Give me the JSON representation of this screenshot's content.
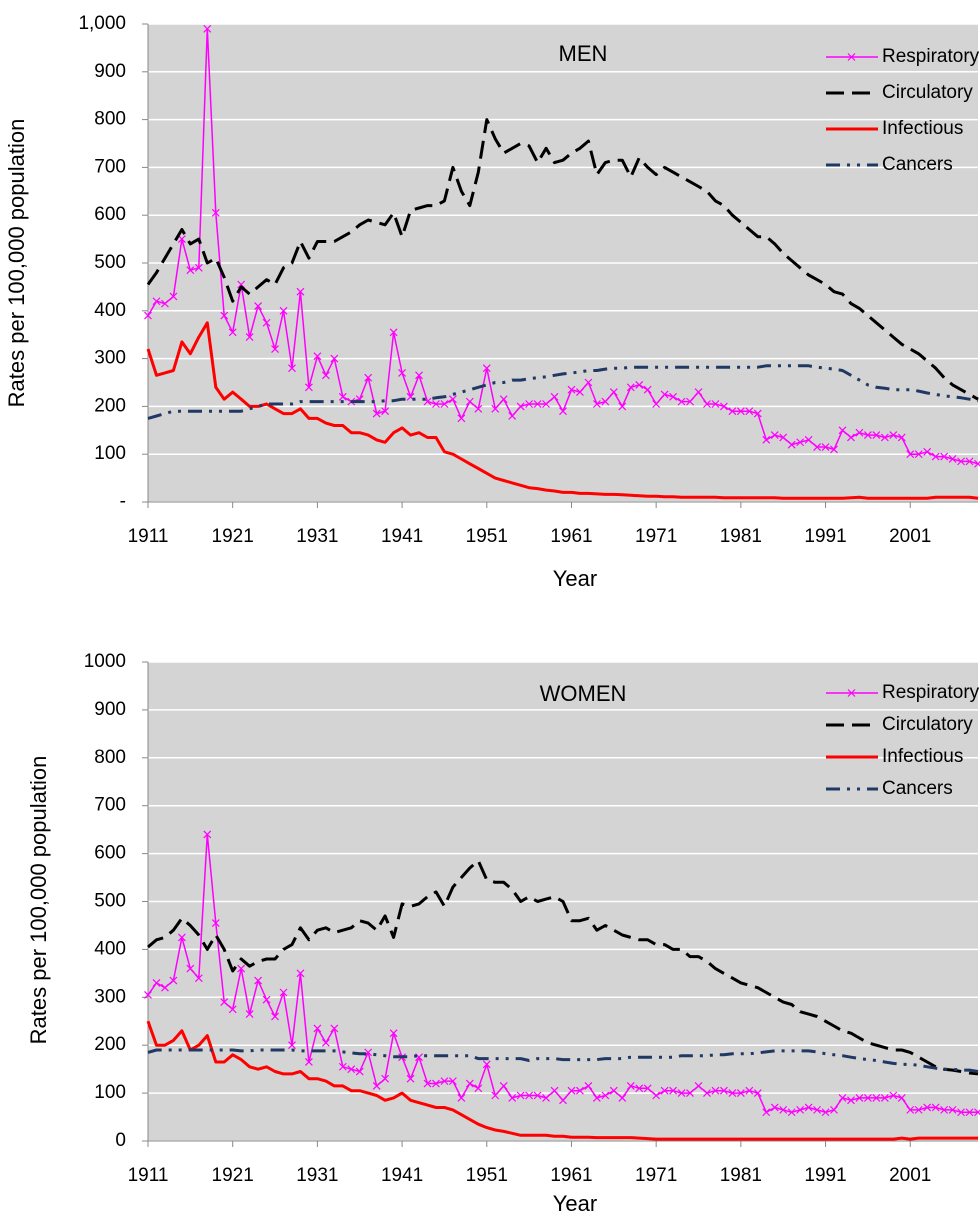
{
  "chart_data": [
    {
      "type": "line",
      "title": "MEN",
      "x_label": "Year",
      "y_label": "Rates per 100,000 population",
      "x": [
        1911,
        1912,
        1913,
        1914,
        1915,
        1916,
        1917,
        1918,
        1919,
        1920,
        1921,
        1922,
        1923,
        1924,
        1925,
        1926,
        1927,
        1928,
        1929,
        1930,
        1931,
        1932,
        1933,
        1934,
        1935,
        1936,
        1937,
        1938,
        1939,
        1940,
        1941,
        1942,
        1943,
        1944,
        1945,
        1946,
        1947,
        1948,
        1949,
        1950,
        1951,
        1952,
        1953,
        1954,
        1955,
        1956,
        1957,
        1958,
        1959,
        1960,
        1961,
        1962,
        1963,
        1964,
        1965,
        1966,
        1967,
        1968,
        1969,
        1970,
        1971,
        1972,
        1973,
        1974,
        1975,
        1976,
        1977,
        1978,
        1979,
        1980,
        1981,
        1982,
        1983,
        1984,
        1985,
        1986,
        1987,
        1988,
        1989,
        1990,
        1991,
        1992,
        1993,
        1994,
        1995,
        1996,
        1997,
        1998,
        1999,
        2000,
        2001,
        2002,
        2003,
        2004,
        2005,
        2006,
        2007,
        2008,
        2009
      ],
      "xlim": [
        1911,
        2009
      ],
      "xticks": [
        1911,
        1921,
        1931,
        1941,
        1951,
        1961,
        1971,
        1981,
        1991,
        2001
      ],
      "ylim": [
        0,
        1000
      ],
      "yticks": [
        {
          "value": 0,
          "label": "-"
        },
        100,
        200,
        300,
        400,
        500,
        600,
        700,
        800,
        900,
        {
          "value": 1000,
          "label": "1,000"
        }
      ],
      "grid": true,
      "legend": "upper right",
      "series": [
        {
          "name": "Respiratory",
          "color": "#ff00ff",
          "line_style": "solid",
          "marker": "x",
          "values": [
            390,
            420,
            415,
            430,
            550,
            485,
            490,
            990,
            605,
            390,
            355,
            455,
            345,
            410,
            375,
            320,
            400,
            280,
            440,
            240,
            305,
            265,
            300,
            220,
            210,
            215,
            260,
            185,
            190,
            355,
            270,
            220,
            265,
            210,
            205,
            205,
            215,
            175,
            210,
            195,
            280,
            195,
            215,
            180,
            200,
            205,
            205,
            205,
            220,
            190,
            235,
            230,
            250,
            205,
            210,
            230,
            200,
            240,
            245,
            235,
            205,
            225,
            220,
            210,
            210,
            230,
            205,
            205,
            200,
            190,
            190,
            190,
            185,
            130,
            140,
            135,
            120,
            125,
            130,
            115,
            115,
            110,
            150,
            135,
            145,
            140,
            140,
            135,
            140,
            135,
            100,
            100,
            105,
            95,
            95,
            90,
            85,
            85,
            80
          ]
        },
        {
          "name": "Circulatory",
          "color": "#000000",
          "line_style": "dashed",
          "values": [
            455,
            480,
            510,
            540,
            570,
            540,
            550,
            500,
            510,
            470,
            420,
            450,
            435,
            450,
            465,
            455,
            490,
            500,
            545,
            510,
            545,
            545,
            545,
            555,
            565,
            580,
            590,
            585,
            580,
            605,
            555,
            610,
            615,
            620,
            620,
            630,
            700,
            650,
            620,
            690,
            800,
            760,
            730,
            740,
            750,
            745,
            710,
            740,
            710,
            715,
            730,
            740,
            755,
            685,
            710,
            715,
            715,
            680,
            720,
            700,
            685,
            700,
            690,
            680,
            670,
            660,
            650,
            630,
            620,
            600,
            585,
            570,
            555,
            555,
            540,
            520,
            505,
            490,
            475,
            465,
            455,
            440,
            435,
            415,
            405,
            390,
            375,
            360,
            345,
            330,
            320,
            310,
            295,
            280,
            260,
            245,
            235,
            225,
            215
          ]
        },
        {
          "name": "Infectious",
          "color": "#ff0000",
          "line_style": "solid",
          "values": [
            320,
            265,
            270,
            275,
            335,
            310,
            345,
            375,
            240,
            215,
            230,
            215,
            200,
            200,
            205,
            195,
            185,
            185,
            195,
            175,
            175,
            165,
            160,
            160,
            145,
            145,
            140,
            130,
            125,
            145,
            155,
            140,
            145,
            135,
            135,
            105,
            100,
            90,
            80,
            70,
            60,
            50,
            45,
            40,
            35,
            30,
            28,
            25,
            23,
            20,
            20,
            18,
            18,
            17,
            16,
            16,
            15,
            14,
            13,
            12,
            12,
            11,
            11,
            10,
            10,
            10,
            10,
            10,
            9,
            9,
            9,
            9,
            9,
            9,
            9,
            8,
            8,
            8,
            8,
            8,
            8,
            8,
            8,
            9,
            10,
            8,
            8,
            8,
            8,
            8,
            8,
            8,
            8,
            10,
            10,
            10,
            10,
            10,
            8
          ]
        },
        {
          "name": "Cancers",
          "color": "#1f3864",
          "line_style": "dash-dot-dot",
          "values": [
            175,
            180,
            185,
            190,
            190,
            190,
            190,
            190,
            190,
            190,
            190,
            190,
            195,
            200,
            205,
            205,
            205,
            205,
            210,
            210,
            210,
            210,
            210,
            210,
            210,
            210,
            210,
            210,
            212,
            212,
            215,
            215,
            215,
            215,
            218,
            220,
            225,
            230,
            235,
            240,
            245,
            250,
            250,
            255,
            255,
            258,
            260,
            262,
            265,
            268,
            270,
            272,
            275,
            275,
            278,
            280,
            280,
            282,
            282,
            282,
            282,
            282,
            282,
            282,
            282,
            282,
            282,
            282,
            282,
            282,
            282,
            282,
            282,
            285,
            285,
            285,
            285,
            285,
            285,
            282,
            280,
            278,
            275,
            265,
            255,
            245,
            240,
            238,
            235,
            235,
            235,
            232,
            228,
            225,
            222,
            220,
            218,
            215,
            212
          ]
        }
      ]
    },
    {
      "type": "line",
      "title": "WOMEN",
      "x_label": "Year",
      "y_label": "Rates per 100,000 population",
      "x": [
        1911,
        1912,
        1913,
        1914,
        1915,
        1916,
        1917,
        1918,
        1919,
        1920,
        1921,
        1922,
        1923,
        1924,
        1925,
        1926,
        1927,
        1928,
        1929,
        1930,
        1931,
        1932,
        1933,
        1934,
        1935,
        1936,
        1937,
        1938,
        1939,
        1940,
        1941,
        1942,
        1943,
        1944,
        1945,
        1946,
        1947,
        1948,
        1949,
        1950,
        1951,
        1952,
        1953,
        1954,
        1955,
        1956,
        1957,
        1958,
        1959,
        1960,
        1961,
        1962,
        1963,
        1964,
        1965,
        1966,
        1967,
        1968,
        1969,
        1970,
        1971,
        1972,
        1973,
        1974,
        1975,
        1976,
        1977,
        1978,
        1979,
        1980,
        1981,
        1982,
        1983,
        1984,
        1985,
        1986,
        1987,
        1988,
        1989,
        1990,
        1991,
        1992,
        1993,
        1994,
        1995,
        1996,
        1997,
        1998,
        1999,
        2000,
        2001,
        2002,
        2003,
        2004,
        2005,
        2006,
        2007,
        2008,
        2009
      ],
      "xlim": [
        1911,
        2009
      ],
      "xticks": [
        1911,
        1921,
        1931,
        1941,
        1951,
        1961,
        1971,
        1981,
        1991,
        2001
      ],
      "ylim": [
        0,
        1000
      ],
      "yticks": [
        0,
        100,
        200,
        300,
        400,
        500,
        600,
        700,
        800,
        900,
        1000
      ],
      "grid": true,
      "legend": "upper right",
      "series": [
        {
          "name": "Respiratory",
          "color": "#ff00ff",
          "line_style": "solid",
          "marker": "x",
          "values": [
            305,
            330,
            320,
            335,
            425,
            360,
            340,
            640,
            455,
            290,
            275,
            360,
            265,
            335,
            295,
            260,
            310,
            200,
            350,
            165,
            235,
            205,
            235,
            155,
            150,
            145,
            185,
            115,
            130,
            225,
            175,
            130,
            175,
            120,
            120,
            125,
            125,
            90,
            120,
            110,
            160,
            95,
            115,
            90,
            95,
            95,
            95,
            90,
            105,
            85,
            105,
            105,
            115,
            90,
            95,
            105,
            90,
            115,
            110,
            110,
            95,
            105,
            105,
            100,
            100,
            115,
            100,
            105,
            105,
            100,
            100,
            105,
            100,
            60,
            70,
            65,
            60,
            65,
            70,
            65,
            60,
            65,
            90,
            85,
            90,
            90,
            90,
            90,
            95,
            90,
            65,
            65,
            70,
            70,
            65,
            65,
            60,
            60,
            60
          ]
        },
        {
          "name": "Circulatory",
          "color": "#000000",
          "line_style": "dashed",
          "values": [
            405,
            420,
            425,
            440,
            465,
            450,
            430,
            400,
            430,
            400,
            355,
            380,
            365,
            375,
            380,
            380,
            400,
            410,
            445,
            420,
            440,
            445,
            435,
            440,
            445,
            460,
            455,
            440,
            470,
            425,
            495,
            490,
            495,
            510,
            520,
            490,
            530,
            550,
            570,
            585,
            545,
            540,
            540,
            525,
            500,
            510,
            500,
            505,
            510,
            500,
            460,
            460,
            465,
            440,
            450,
            440,
            430,
            425,
            420,
            420,
            410,
            410,
            400,
            400,
            385,
            385,
            375,
            360,
            350,
            340,
            330,
            325,
            320,
            310,
            300,
            290,
            285,
            270,
            265,
            260,
            250,
            240,
            230,
            225,
            215,
            205,
            200,
            195,
            190,
            190,
            185,
            175,
            165,
            155,
            150,
            148,
            145,
            142,
            140
          ]
        },
        {
          "name": "Infectious",
          "color": "#ff0000",
          "line_style": "solid",
          "values": [
            250,
            200,
            200,
            210,
            230,
            190,
            200,
            220,
            165,
            165,
            180,
            170,
            155,
            150,
            155,
            145,
            140,
            140,
            145,
            130,
            130,
            125,
            115,
            115,
            105,
            105,
            100,
            95,
            85,
            90,
            100,
            85,
            80,
            75,
            70,
            70,
            65,
            55,
            45,
            35,
            28,
            23,
            20,
            16,
            12,
            12,
            12,
            12,
            10,
            10,
            8,
            8,
            8,
            7,
            7,
            7,
            7,
            7,
            6,
            5,
            4,
            4,
            4,
            4,
            4,
            4,
            4,
            4,
            4,
            4,
            4,
            4,
            4,
            4,
            4,
            4,
            4,
            4,
            4,
            4,
            4,
            4,
            4,
            4,
            4,
            4,
            4,
            4,
            4,
            6,
            4,
            6,
            6,
            6,
            6,
            6,
            6,
            6,
            6
          ]
        },
        {
          "name": "Cancers",
          "color": "#1f3864",
          "line_style": "dash-dot-dot",
          "values": [
            185,
            190,
            190,
            190,
            190,
            190,
            190,
            190,
            190,
            190,
            190,
            188,
            188,
            190,
            190,
            190,
            190,
            190,
            188,
            188,
            188,
            188,
            188,
            186,
            184,
            182,
            182,
            180,
            178,
            176,
            176,
            176,
            178,
            178,
            178,
            178,
            178,
            178,
            178,
            172,
            172,
            172,
            172,
            172,
            172,
            168,
            172,
            172,
            172,
            170,
            170,
            170,
            170,
            170,
            172,
            172,
            172,
            175,
            175,
            175,
            175,
            175,
            175,
            178,
            178,
            178,
            178,
            180,
            180,
            182,
            182,
            182,
            184,
            186,
            188,
            188,
            188,
            188,
            188,
            186,
            182,
            180,
            178,
            175,
            172,
            170,
            168,
            165,
            162,
            160,
            160,
            158,
            155,
            152,
            150,
            150,
            148,
            148,
            145
          ]
        }
      ]
    }
  ]
}
